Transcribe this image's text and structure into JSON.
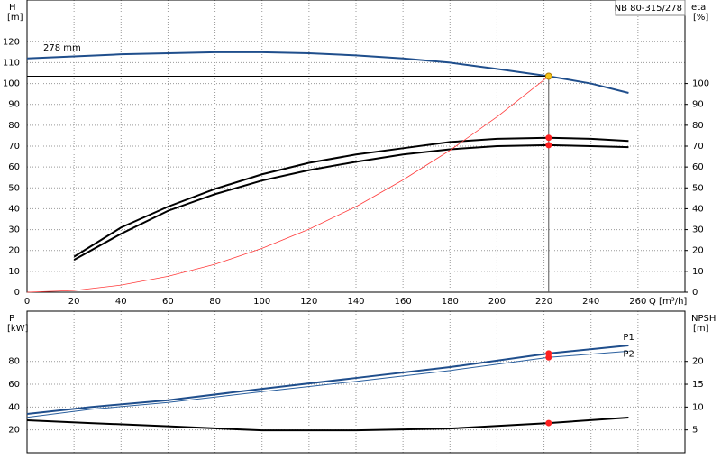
{
  "chart_data": [
    {
      "type": "line",
      "title": "NB 80-315/278",
      "ylabel": "H",
      "yunit": "[m]",
      "y2label": "eta",
      "y2unit": "[%]",
      "xlabel": "Q [m³/h]",
      "xlim": [
        0,
        280
      ],
      "xticks": [
        0,
        20,
        40,
        60,
        80,
        100,
        120,
        140,
        160,
        180,
        200,
        220,
        240,
        260
      ],
      "ylim": [
        0,
        140
      ],
      "yticks": [
        0,
        10,
        20,
        30,
        40,
        50,
        60,
        70,
        80,
        90,
        100,
        110,
        120
      ],
      "y2lim": [
        0,
        140
      ],
      "y2ticks": [
        0,
        10,
        20,
        30,
        40,
        50,
        60,
        70,
        80,
        90,
        100
      ],
      "grid": true,
      "x": [
        0,
        20,
        40,
        60,
        80,
        100,
        120,
        140,
        160,
        180,
        200,
        222,
        240,
        256
      ],
      "series": [
        {
          "name": "278 mm",
          "color": "#1f4e8c",
          "values": [
            112,
            113,
            114,
            114.5,
            115,
            115,
            114.5,
            113.5,
            112,
            110,
            107,
            103.5,
            100,
            95.5
          ]
        },
        {
          "color": "#000000",
          "axis": "y2",
          "values": [
            null,
            17,
            31,
            41,
            49.5,
            56.5,
            62,
            66,
            69,
            72,
            73.5,
            74,
            73.5,
            72.5
          ]
        },
        {
          "color": "#000000",
          "axis": "y2",
          "values": [
            null,
            15.5,
            28,
            39,
            47,
            53.5,
            58.5,
            62.5,
            66,
            68.5,
            70,
            70.5,
            70,
            69.5
          ]
        },
        {
          "color": "#ff3b3b",
          "values": [
            0,
            0.8,
            3.4,
            7.6,
            13.4,
            21,
            30.2,
            41,
            53.8,
            68,
            84,
            103.5,
            null,
            null
          ]
        }
      ],
      "markers": [
        {
          "x": 222,
          "y": 103.5,
          "color": "#f5c518"
        },
        {
          "x": 222,
          "y": 74,
          "color": "#ff2020",
          "axis": "y2"
        },
        {
          "x": 222,
          "y": 70.5,
          "color": "#ff2020",
          "axis": "y2"
        }
      ]
    },
    {
      "type": "line",
      "ylabel": "P",
      "yunit": "[kW]",
      "y2label": "NPSH",
      "y2unit": "[m]",
      "xlim": [
        0,
        280
      ],
      "xticks": [
        0,
        20,
        40,
        60,
        80,
        100,
        120,
        140,
        160,
        180,
        200,
        220,
        240,
        260
      ],
      "ylim": [
        0,
        124
      ],
      "yticks": [
        20,
        40,
        60,
        80
      ],
      "y2lim": [
        0,
        31
      ],
      "y2ticks": [
        5,
        10,
        15,
        20
      ],
      "grid": true,
      "x": [
        0,
        27,
        60,
        100,
        140,
        180,
        222,
        256
      ],
      "series": [
        {
          "name": "P1",
          "color": "#1f4e8c",
          "values": [
            34,
            40,
            46,
            56,
            65.5,
            75,
            87,
            94
          ]
        },
        {
          "name": "P2",
          "color": "#2a5f9e",
          "values": [
            31,
            38,
            44,
            53.5,
            62.5,
            72,
            83.5,
            89
          ]
        },
        {
          "color": "#000000",
          "axis": "y2",
          "values": [
            7.1,
            6.5,
            5.8,
            4.9,
            4.9,
            5.3,
            6.5,
            7.7
          ]
        }
      ],
      "markers": [
        {
          "x": 222,
          "y": 87,
          "color": "#ff2020"
        },
        {
          "x": 222,
          "y": 83.5,
          "color": "#ff2020"
        },
        {
          "x": 222,
          "y": 6.5,
          "color": "#ff2020",
          "axis": "y2"
        }
      ]
    }
  ]
}
